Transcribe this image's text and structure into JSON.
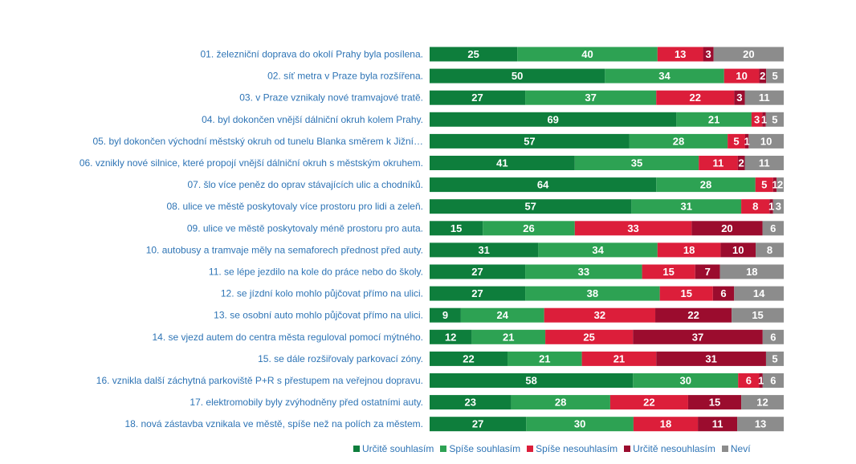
{
  "chart_data": {
    "type": "bar",
    "orientation": "horizontal",
    "stacked": true,
    "legend_position": "bottom",
    "categories": [
      "01. železniční doprava do okolí Prahy byla posílena.",
      "02. síť metra v Praze byla rozšířena.",
      "03. v Praze vznikaly nové tramvajové tratě.",
      "04. byl dokončen vnější dálniční okruh kolem Prahy.",
      "05. byl dokončen východní městský okruh od tunelu Blanka směrem k Jižní…",
      "06. vznikly nové silnice, které propojí vnější dálniční okruh s městským okruhem.",
      "07. šlo více peněz do oprav stávajících ulic a chodníků.",
      "08. ulice ve městě poskytovaly více prostoru pro lidi a zeleň.",
      "09. ulice ve městě poskytovaly méně prostoru pro auta.",
      "10. autobusy a tramvaje měly na semaforech přednost před auty.",
      "11. se lépe jezdilo na kole do práce nebo do školy.",
      "12. se jízdní kolo mohlo půjčovat přímo na ulici.",
      "13. se osobní auto mohlo půjčovat přímo na ulici.",
      "14. se vjezd autem do centra města reguloval pomocí mýtného.",
      "15. se dále rozšiřovaly parkovací zóny.",
      "16. vznikla další záchytná parkoviště P+R s přestupem na veřejnou dopravu.",
      "17. elektromobily byly zvýhodněny před ostatními auty.",
      "18. nová zástavba vznikala ve městě, spíše než na polích za městem."
    ],
    "series": [
      {
        "name": "Určitě souhlasím",
        "color": "#0E7E3C",
        "values": [
          25,
          50,
          27,
          69,
          57,
          41,
          64,
          57,
          15,
          31,
          27,
          27,
          9,
          12,
          22,
          58,
          23,
          27
        ]
      },
      {
        "name": "Spíše souhlasím",
        "color": "#2DA253",
        "values": [
          40,
          34,
          37,
          21,
          28,
          35,
          28,
          31,
          26,
          34,
          33,
          38,
          24,
          21,
          21,
          30,
          28,
          30
        ]
      },
      {
        "name": "Spíše nesouhlasím",
        "color": "#DC1E3A",
        "values": [
          13,
          10,
          22,
          3,
          5,
          11,
          5,
          8,
          33,
          18,
          15,
          15,
          32,
          25,
          21,
          6,
          22,
          18
        ]
      },
      {
        "name": "Určitě nesouhlasím",
        "color": "#9B0C2E",
        "values": [
          3,
          2,
          3,
          1,
          1,
          2,
          1,
          1,
          20,
          10,
          7,
          6,
          22,
          37,
          31,
          1,
          15,
          11
        ]
      },
      {
        "name": "Neví",
        "color": "#8C8C8C",
        "values": [
          20,
          5,
          11,
          5,
          10,
          11,
          2,
          3,
          6,
          8,
          18,
          14,
          15,
          6,
          5,
          6,
          12,
          13
        ]
      }
    ]
  }
}
